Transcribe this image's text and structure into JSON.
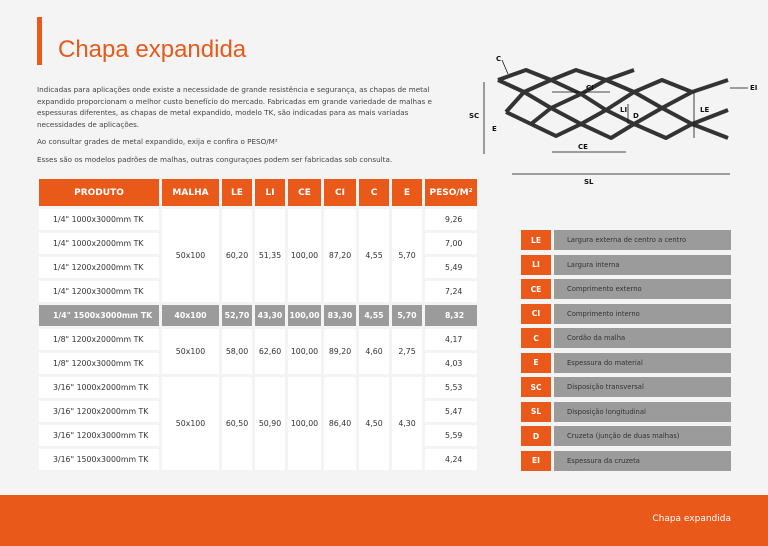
{
  "header": {
    "title": "Chapa expandida"
  },
  "intro": {
    "paragraph1": "Indicadas para aplicações onde existe a necessidade de grande resistência e segurança, as chapas de metal expandido proporcionam o melhor custo benefício do mercado.  Fabricadas em grande variedade de malhas e espessuras diferentes, as chapas de metal expandido, modelo TK, são indicadas para as mais variadas necessidades de aplicações.",
    "paragraph2": "Ao consultar grades de metal expandido, exija e confira o PESO/M²",
    "paragraph3": "Esses são os modelos padrões de malhas, outras conguraçoes podem ser fabricadas sob consulta."
  },
  "table": {
    "headers": [
      "PRODUTO",
      "MALHA",
      "LE",
      "LI",
      "CE",
      "CI",
      "C",
      "E",
      "PESO/M²"
    ],
    "groups": [
      {
        "malha": "50x100",
        "le": "60,20",
        "li": "51,35",
        "ce": "100,00",
        "ci": "87,20",
        "c": "4,55",
        "e": "5,70",
        "rows": [
          {
            "produto": "1/4\" 1000x3000mm TK",
            "peso": "9,26"
          },
          {
            "produto": "1/4\" 1000x2000mm TK",
            "peso": "7,00"
          },
          {
            "produto": "1/4\" 1200x2000mm TK",
            "peso": "5,49"
          },
          {
            "produto": "1/4\" 1200x3000mm TK",
            "peso": "7,24"
          }
        ]
      },
      {
        "highlight": true,
        "malha": "40x100",
        "le": "52,70",
        "li": "43,30",
        "ce": "100,00",
        "ci": "83,30",
        "c": "4,55",
        "e": "5,70",
        "rows": [
          {
            "produto": "1/4\" 1500x3000mm TK",
            "peso": "8,32"
          }
        ]
      },
      {
        "malha": "50x100",
        "le": "58,00",
        "li": "62,60",
        "ce": "100,00",
        "ci": "89,20",
        "c": "4,60",
        "e": "2,75",
        "rows": [
          {
            "produto": "1/8\" 1200x2000mm TK",
            "peso": "4,17"
          },
          {
            "produto": "1/8\" 1200x3000mm TK",
            "peso": "4,03"
          }
        ]
      },
      {
        "malha": "50x100",
        "le": "60,50",
        "li": "50,90",
        "ce": "100,00",
        "ci": "86,40",
        "c": "4,50",
        "e": "4,30",
        "rows": [
          {
            "produto": "3/16\" 1000x2000mm TK",
            "peso": "5,53"
          },
          {
            "produto": "3/16\" 1200x2000mm TK",
            "peso": "5,47"
          },
          {
            "produto": "3/16\" 1200x3000mm TK",
            "peso": "5,59"
          },
          {
            "produto": "3/16\" 1500x3000mm TK",
            "peso": "4,24"
          }
        ]
      }
    ]
  },
  "legend": [
    {
      "key": "LE",
      "desc": "Largura externa de centro a centro"
    },
    {
      "key": "LI",
      "desc": "Largura interna"
    },
    {
      "key": "CE",
      "desc": "Comprimento externo"
    },
    {
      "key": "CI",
      "desc": "Comprimento interno"
    },
    {
      "key": "C",
      "desc": "Cordão da malha"
    },
    {
      "key": "E",
      "desc": "Espessura do material"
    },
    {
      "key": "SC",
      "desc": "Disposição transversal"
    },
    {
      "key": "SL",
      "desc": "Disposição longitudinal"
    },
    {
      "key": "D",
      "desc": "Cruzeta (junção de duas malhas)"
    },
    {
      "key": "EI",
      "desc": "Espessura da cruzeta"
    }
  ],
  "diagram": {
    "labels": {
      "c": "C",
      "ci": "CI",
      "li": "LI",
      "d": "D",
      "le": "LE",
      "sc": "SC",
      "e": "E",
      "ce": "CE",
      "sl": "SL",
      "ei": "EI"
    }
  },
  "footer": {
    "label": "Chapa expandida"
  },
  "colors": {
    "accent": "#e8591a",
    "highlight": "#9b9b9b"
  }
}
